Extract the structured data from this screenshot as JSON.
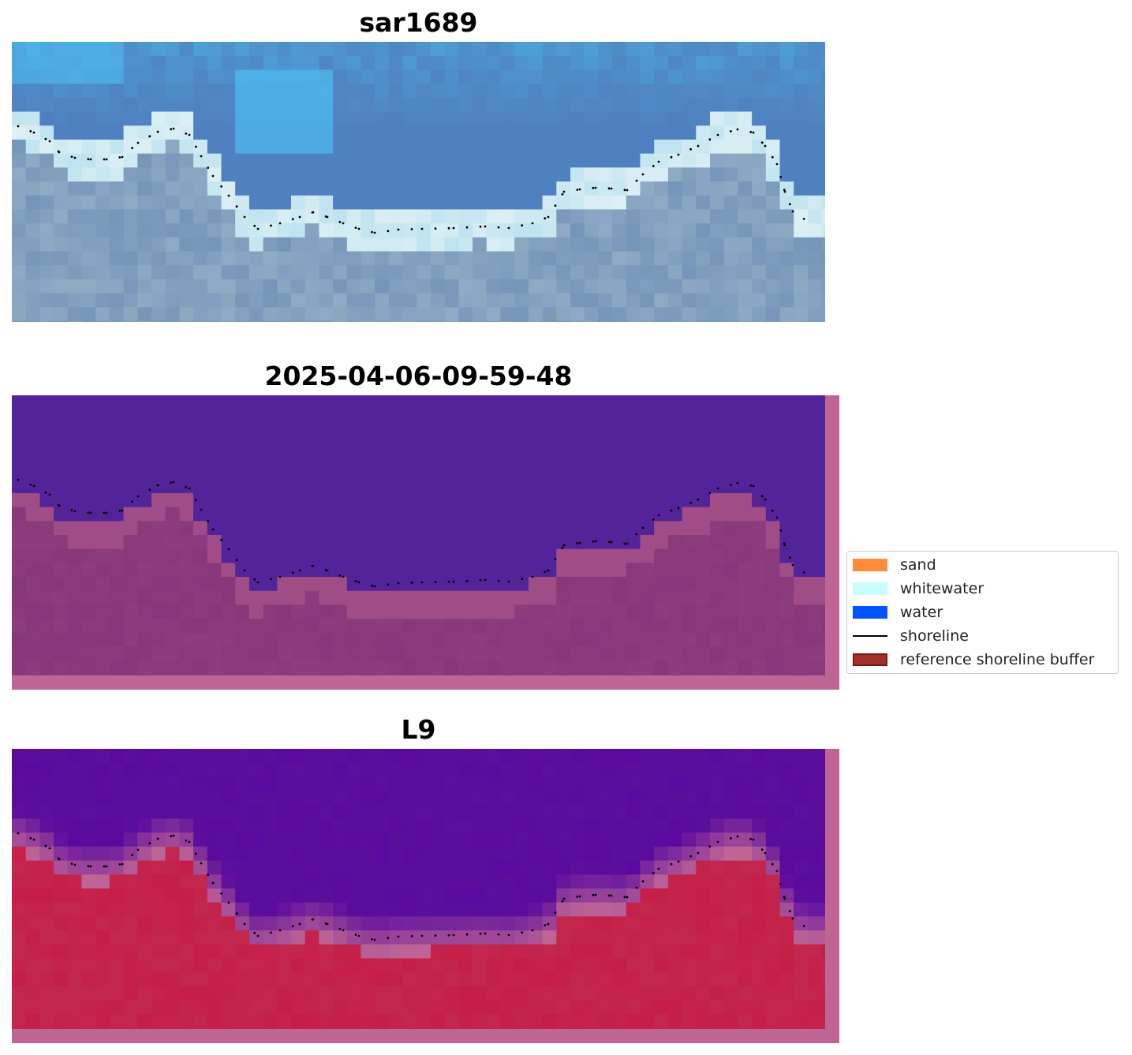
{
  "panels": [
    {
      "title": "sar1689",
      "kind": "rgb"
    },
    {
      "title": "2025-04-06-09-59-48",
      "kind": "classification"
    },
    {
      "title": "L9",
      "kind": "probability"
    }
  ],
  "legend": {
    "items": [
      {
        "label": "sand",
        "color": "#ff8c3a"
      },
      {
        "label": "whitewater",
        "color": "#c8fdfd"
      },
      {
        "label": "water",
        "color": "#0055ff"
      },
      {
        "label": "shoreline",
        "color": "#000000"
      },
      {
        "label": "reference shoreline buffer",
        "color": "#a0302c"
      }
    ]
  },
  "colors": {
    "rgb_water": "#4f80bf",
    "rgb_land": "#7595b8",
    "rgb_surf": "#bfe4ef",
    "class_water": "#53239a",
    "class_land": "#86387a",
    "class_buffer": "#bf6596",
    "prob_water": "#5a0a9e",
    "prob_land": "#c3274f",
    "prob_buffer": "#bf6596",
    "shoreline": "#000000"
  }
}
